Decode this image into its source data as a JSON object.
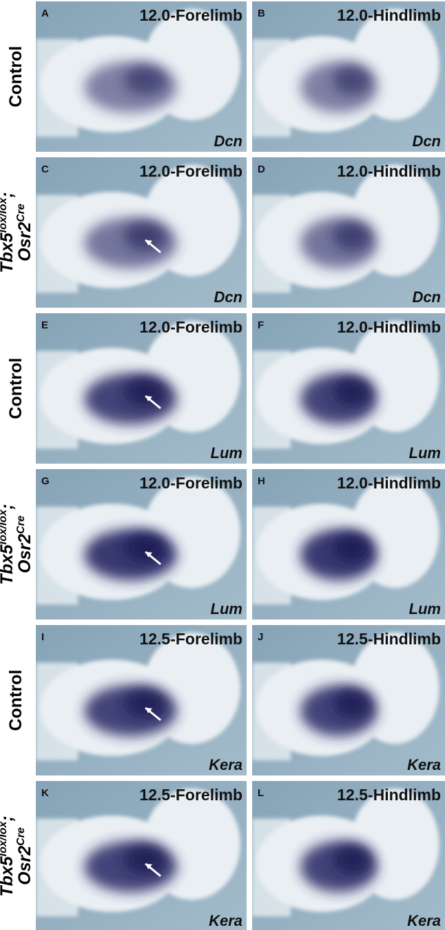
{
  "rows": [
    {
      "label": {
        "text": "Control"
      },
      "panels": [
        {
          "letter": "A",
          "title": "12.0-Forelimb",
          "gene": "Dcn"
        },
        {
          "letter": "B",
          "title": "12.0-Hindlimb",
          "gene": "Dcn"
        }
      ]
    },
    {
      "label": {
        "parts": [
          "Tbx5",
          "lox/lox",
          ";",
          "Osr2",
          "Cre"
        ]
      },
      "panels": [
        {
          "letter": "C",
          "title": "12.0-Forelimb",
          "gene": "Dcn"
        },
        {
          "letter": "D",
          "title": "12.0-Hindlimb",
          "gene": "Dcn"
        }
      ]
    },
    {
      "label": {
        "text": "Control"
      },
      "panels": [
        {
          "letter": "E",
          "title": "12.0-Forelimb",
          "gene": "Lum"
        },
        {
          "letter": "F",
          "title": "12.0-Hindlimb",
          "gene": "Lum"
        }
      ]
    },
    {
      "label": {
        "parts": [
          "Tbx5",
          "lox/lox",
          ";",
          "Osr2",
          "Cre"
        ]
      },
      "panels": [
        {
          "letter": "G",
          "title": "12.0-Forelimb",
          "gene": "Lum"
        },
        {
          "letter": "H",
          "title": "12.0-Hindlimb",
          "gene": "Lum"
        }
      ]
    },
    {
      "label": {
        "text": "Control"
      },
      "panels": [
        {
          "letter": "I",
          "title": "12.5-Forelimb",
          "gene": "Kera"
        },
        {
          "letter": "J",
          "title": "12.5-Hindlimb",
          "gene": "Kera"
        }
      ]
    },
    {
      "label": {
        "parts": [
          "Tbx5",
          "lox/lox",
          ";",
          "Osr2",
          "Cre"
        ]
      },
      "panels": [
        {
          "letter": "K",
          "title": "12.5-Forelimb",
          "gene": "Kera"
        },
        {
          "letter": "L",
          "title": "12.5-Hindlimb",
          "gene": "Kera"
        }
      ]
    }
  ]
}
